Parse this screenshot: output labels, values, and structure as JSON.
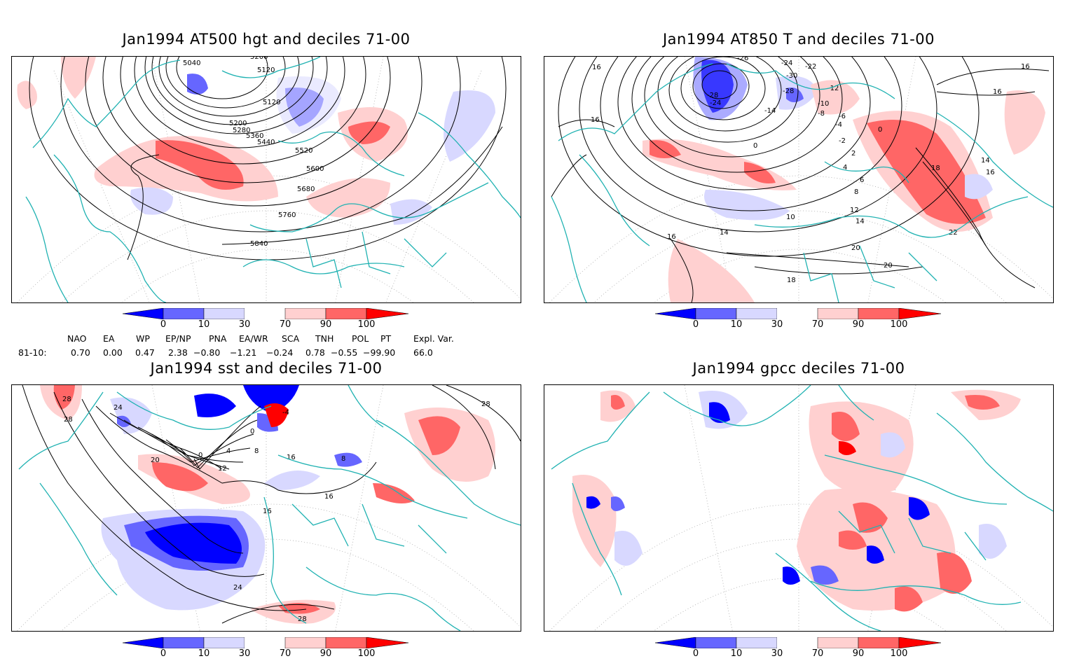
{
  "panels": [
    {
      "id": "p1",
      "title": "Jan1994 AT500 hgt and deciles 71-00",
      "contour_labels": [
        "5040",
        "5200",
        "5120",
        "5120",
        "5200",
        "5280",
        "5360",
        "5440",
        "5520",
        "5600",
        "5680",
        "5760",
        "5840"
      ]
    },
    {
      "id": "p2",
      "title": "Jan1994 AT850 T and deciles 71-00",
      "contour_labels": [
        "16",
        "16",
        "16",
        "-26",
        "-24",
        "-30",
        "-28",
        "-24",
        "-22",
        "-14",
        "-28",
        "-12",
        "-10",
        "-8",
        "-6",
        "-4",
        "0",
        "-2",
        "0",
        "2",
        "4",
        "6",
        "8",
        "10",
        "12",
        "14",
        "18",
        "14",
        "16",
        "16",
        "22",
        "14",
        "16",
        "20",
        "20",
        "18"
      ]
    },
    {
      "id": "p3",
      "title": "Jan1994 sst and deciles 71-00",
      "contour_labels": [
        "28",
        "28",
        "24",
        "20",
        "0",
        "4",
        "0",
        "-4",
        "8",
        "12",
        "16",
        "16",
        "8",
        "16",
        "24",
        "28",
        "28"
      ]
    },
    {
      "id": "p4",
      "title": "Jan1994 gpcc deciles 71-00",
      "contour_labels": []
    }
  ],
  "colorbar": {
    "tick_labels": [
      "0",
      "10",
      "30",
      "70",
      "90",
      "100"
    ],
    "colors": {
      "dark_blue": "#0000ff",
      "mid_blue": "#6666ff",
      "light_blue": "#d8d8ff",
      "white": "#ffffff",
      "light_red": "#ffd0d0",
      "mid_red": "#ff6666",
      "dark_red": "#ff0000"
    }
  },
  "indices": {
    "headers": [
      "NAO",
      "EA",
      "WP",
      "EP/NP",
      "PNA",
      "EA/WR",
      "SCA",
      "TNH",
      "POL",
      "PT",
      "Expl. Var."
    ],
    "row_label": "81-10:",
    "values": [
      "0.70",
      "0.00",
      "0.47",
      "2.38",
      "−0.80",
      "−1.21",
      "−0.24",
      "0.78",
      "−0.55",
      "−99.90",
      "66.0"
    ]
  },
  "map_colors": {
    "coast": "#20b2b2",
    "contour": "#000000",
    "grid": "#999999"
  }
}
